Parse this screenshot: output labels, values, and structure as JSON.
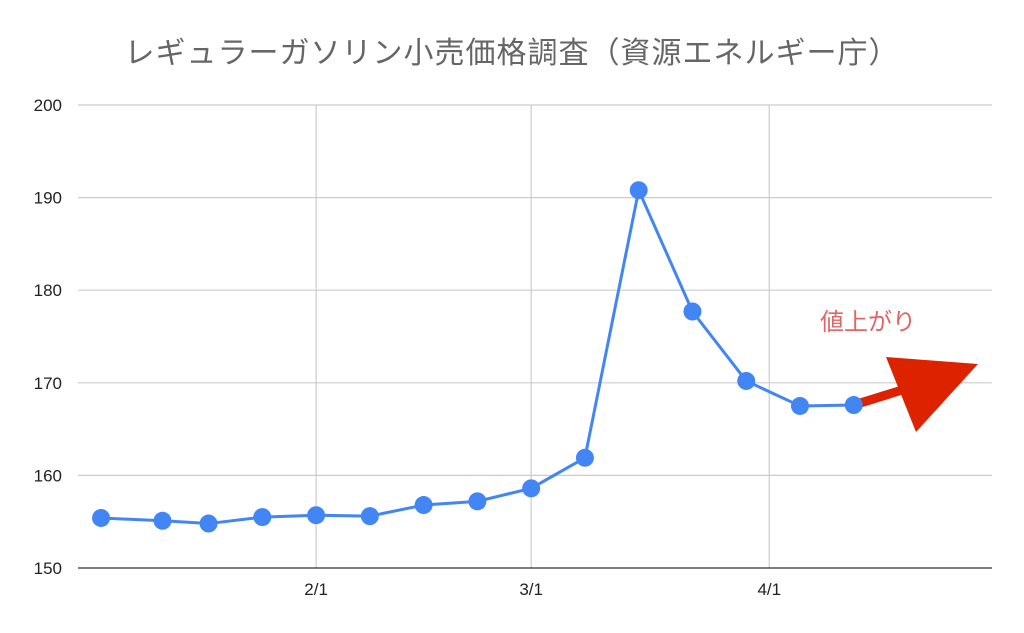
{
  "chart_data": {
    "type": "line",
    "title": "レギュラーガソリン小売価格調査（資源エネルギー庁）",
    "xlabel": "",
    "ylabel": "",
    "ylim": [
      150,
      200
    ],
    "yticks": [
      150,
      160,
      170,
      180,
      190,
      200
    ],
    "xticks": [
      "2/1",
      "3/1",
      "4/1"
    ],
    "grid": true,
    "series": [
      {
        "color": "#4285f4",
        "x": [
          "2021-01-04",
          "2021-01-12",
          "2021-01-18",
          "2021-01-25",
          "2021-02-01",
          "2021-02-08",
          "2021-02-15",
          "2021-02-22",
          "2021-03-01",
          "2021-03-08",
          "2021-03-15",
          "2021-03-22",
          "2021-03-29",
          "2021-04-05",
          "2021-04-12"
        ],
        "values": [
          155.4,
          155.1,
          154.8,
          155.5,
          155.7,
          155.6,
          156.8,
          157.2,
          158.6,
          161.9,
          190.8,
          177.7,
          170.2,
          167.5,
          167.6
        ]
      }
    ],
    "annotations": [
      {
        "text": "値上がり",
        "color": "#e06666"
      }
    ],
    "arrow_color": "#dd2200"
  }
}
